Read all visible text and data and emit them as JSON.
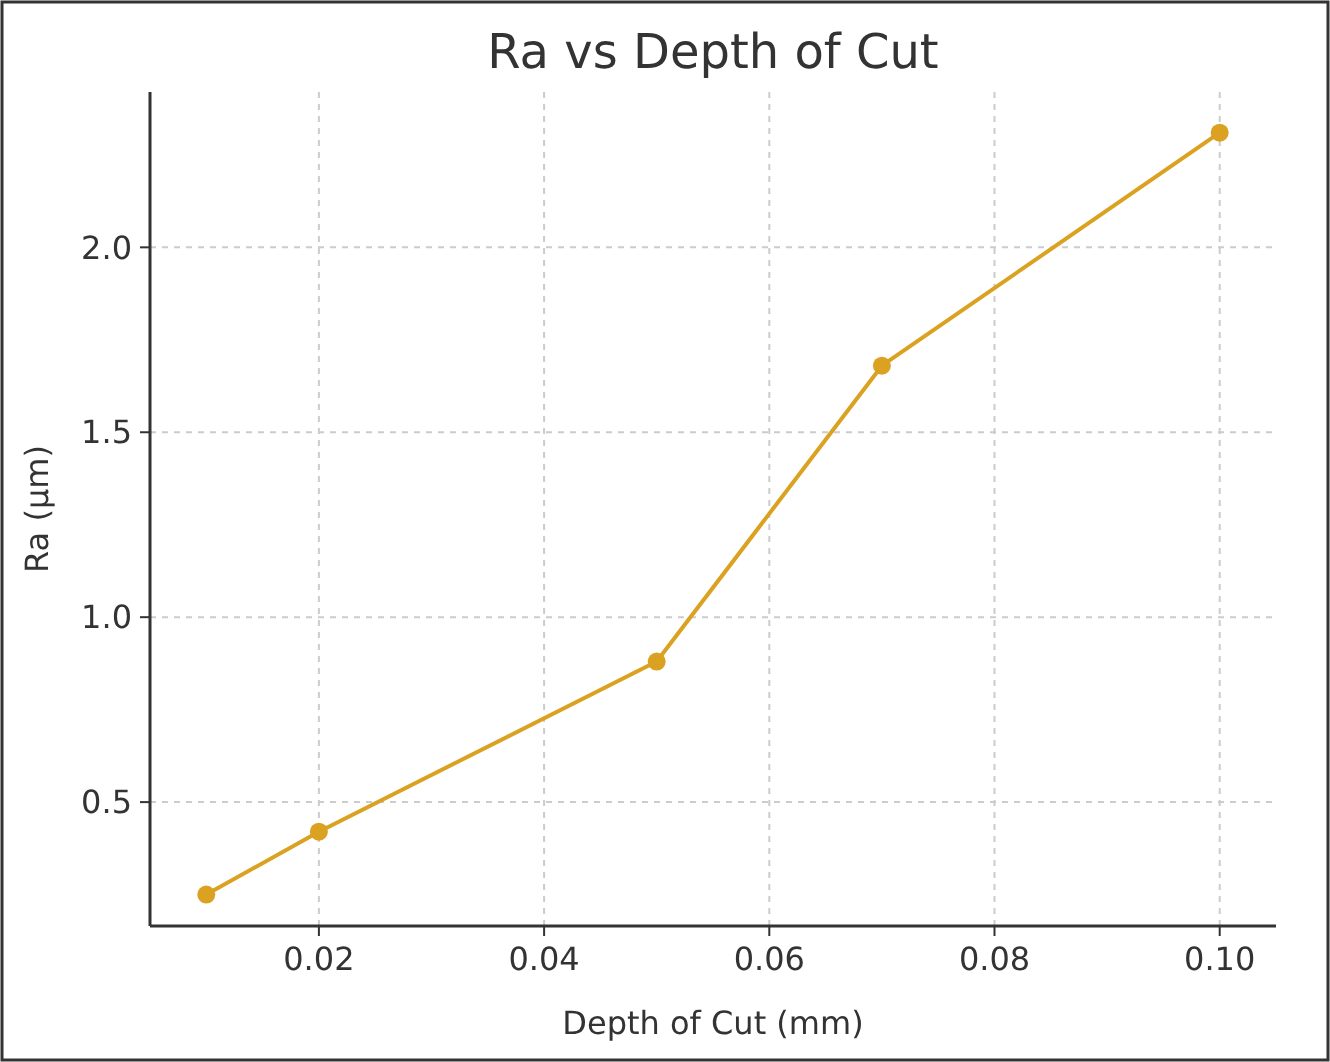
{
  "chart_data": {
    "type": "line",
    "title": "Ra vs Depth of Cut",
    "xlabel": "Depth of Cut (mm)",
    "ylabel": "Ra (µm)",
    "x": [
      0.01,
      0.02,
      0.05,
      0.07,
      0.1
    ],
    "series": [
      {
        "color": "#dba222",
        "values": [
          0.25,
          0.42,
          0.88,
          1.68,
          2.31
        ]
      }
    ],
    "xlim": [
      0.005,
      0.105
    ],
    "ylim": [
      0.165,
      2.42
    ],
    "xticks": [
      0.02,
      0.04,
      0.06,
      0.08,
      {
        "value": 0.1,
        "label": "0.10"
      }
    ],
    "yticks": [
      0.5,
      {
        "value": 1,
        "label": "1.0"
      },
      1.5,
      {
        "value": 2,
        "label": "2.0"
      }
    ],
    "grid": true,
    "marker": "circle",
    "line_style": "solid"
  }
}
